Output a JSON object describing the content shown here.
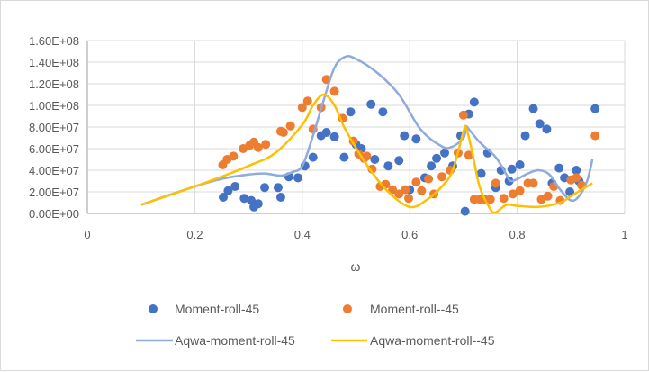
{
  "chart_data": {
    "type": "scatter",
    "title": "",
    "xlabel": "ω",
    "ylabel": "",
    "xlim": [
      0,
      1
    ],
    "ylim": [
      0,
      160000000
    ],
    "x_ticks": [
      "0",
      "0.2",
      "0.4",
      "0.6",
      "0.8",
      "1"
    ],
    "y_ticks": [
      "0.00E+00",
      "2.00E+07",
      "4.00E+07",
      "6.00E+07",
      "8.00E+07",
      "1.00E+08",
      "1.20E+08",
      "1.40E+08",
      "1.60E+08"
    ],
    "grid": {
      "horizontal": true,
      "vertical": true
    },
    "legend_position": "bottom",
    "series": [
      {
        "name": "Moment-roll-45",
        "kind": "markers",
        "color": "#4472C4",
        "points": [
          [
            0.253,
            15000000
          ],
          [
            0.262,
            21000000
          ],
          [
            0.275,
            25000000
          ],
          [
            0.292,
            14000000
          ],
          [
            0.305,
            12000000
          ],
          [
            0.31,
            6000000
          ],
          [
            0.318,
            9000000
          ],
          [
            0.33,
            24000000
          ],
          [
            0.355,
            24000000
          ],
          [
            0.36,
            15000000
          ],
          [
            0.375,
            34000000
          ],
          [
            0.392,
            33000000
          ],
          [
            0.405,
            44000000
          ],
          [
            0.42,
            52000000
          ],
          [
            0.435,
            72000000
          ],
          [
            0.445,
            75000000
          ],
          [
            0.46,
            71000000
          ],
          [
            0.478,
            52000000
          ],
          [
            0.49,
            94000000
          ],
          [
            0.5,
            64000000
          ],
          [
            0.51,
            60000000
          ],
          [
            0.528,
            101000000
          ],
          [
            0.535,
            50000000
          ],
          [
            0.55,
            94000000
          ],
          [
            0.56,
            44000000
          ],
          [
            0.58,
            49000000
          ],
          [
            0.59,
            72000000
          ],
          [
            0.6,
            22000000
          ],
          [
            0.612,
            69000000
          ],
          [
            0.628,
            33000000
          ],
          [
            0.64,
            44000000
          ],
          [
            0.65,
            51000000
          ],
          [
            0.665,
            56000000
          ],
          [
            0.68,
            44000000
          ],
          [
            0.695,
            72000000
          ],
          [
            0.703,
            2000000
          ],
          [
            0.71,
            92000000
          ],
          [
            0.72,
            103000000
          ],
          [
            0.733,
            37000000
          ],
          [
            0.745,
            56000000
          ],
          [
            0.76,
            24000000
          ],
          [
            0.77,
            40000000
          ],
          [
            0.785,
            30000000
          ],
          [
            0.79,
            41000000
          ],
          [
            0.805,
            45000000
          ],
          [
            0.815,
            72000000
          ],
          [
            0.83,
            97000000
          ],
          [
            0.842,
            83000000
          ],
          [
            0.855,
            78000000
          ],
          [
            0.865,
            28000000
          ],
          [
            0.878,
            42000000
          ],
          [
            0.888,
            33000000
          ],
          [
            0.898,
            20000000
          ],
          [
            0.91,
            40000000
          ],
          [
            0.915,
            30000000
          ],
          [
            0.945,
            97000000
          ]
        ]
      },
      {
        "name": "Moment-roll--45",
        "kind": "markers",
        "color": "#ED7D31",
        "points": [
          [
            0.252,
            45000000
          ],
          [
            0.26,
            50000000
          ],
          [
            0.272,
            53000000
          ],
          [
            0.29,
            60000000
          ],
          [
            0.302,
            63000000
          ],
          [
            0.31,
            66000000
          ],
          [
            0.318,
            61000000
          ],
          [
            0.332,
            64000000
          ],
          [
            0.36,
            76000000
          ],
          [
            0.365,
            75000000
          ],
          [
            0.378,
            81000000
          ],
          [
            0.4,
            98000000
          ],
          [
            0.41,
            104000000
          ],
          [
            0.42,
            78000000
          ],
          [
            0.435,
            98000000
          ],
          [
            0.445,
            124000000
          ],
          [
            0.46,
            113000000
          ],
          [
            0.475,
            88000000
          ],
          [
            0.495,
            67000000
          ],
          [
            0.505,
            55000000
          ],
          [
            0.515,
            51000000
          ],
          [
            0.52,
            53000000
          ],
          [
            0.53,
            41000000
          ],
          [
            0.545,
            25000000
          ],
          [
            0.555,
            27000000
          ],
          [
            0.568,
            22000000
          ],
          [
            0.58,
            18000000
          ],
          [
            0.592,
            22000000
          ],
          [
            0.598,
            14000000
          ],
          [
            0.612,
            29000000
          ],
          [
            0.622,
            21000000
          ],
          [
            0.635,
            32000000
          ],
          [
            0.645,
            18000000
          ],
          [
            0.66,
            34000000
          ],
          [
            0.675,
            40000000
          ],
          [
            0.69,
            56000000
          ],
          [
            0.7,
            91000000
          ],
          [
            0.71,
            54000000
          ],
          [
            0.72,
            13000000
          ],
          [
            0.73,
            13000000
          ],
          [
            0.74,
            13000000
          ],
          [
            0.75,
            13000000
          ],
          [
            0.76,
            28000000
          ],
          [
            0.775,
            14000000
          ],
          [
            0.792,
            18000000
          ],
          [
            0.805,
            21000000
          ],
          [
            0.82,
            28000000
          ],
          [
            0.83,
            28000000
          ],
          [
            0.845,
            13000000
          ],
          [
            0.857,
            16000000
          ],
          [
            0.868,
            25000000
          ],
          [
            0.88,
            12000000
          ],
          [
            0.9,
            31000000
          ],
          [
            0.91,
            33000000
          ],
          [
            0.92,
            26000000
          ],
          [
            0.945,
            72000000
          ]
        ]
      },
      {
        "name": "Aqwa-moment-roll-45",
        "kind": "line",
        "color": "#8FAADC",
        "points": [
          [
            0.1,
            8000000
          ],
          [
            0.2,
            25000000
          ],
          [
            0.25,
            32000000
          ],
          [
            0.3,
            36000000
          ],
          [
            0.33,
            37000000
          ],
          [
            0.36,
            35000000
          ],
          [
            0.38,
            38000000
          ],
          [
            0.4,
            44000000
          ],
          [
            0.42,
            72000000
          ],
          [
            0.44,
            105000000
          ],
          [
            0.46,
            135000000
          ],
          [
            0.48,
            145000000
          ],
          [
            0.5,
            143000000
          ],
          [
            0.54,
            130000000
          ],
          [
            0.58,
            110000000
          ],
          [
            0.62,
            78000000
          ],
          [
            0.66,
            62000000
          ],
          [
            0.68,
            62000000
          ],
          [
            0.7,
            70000000
          ],
          [
            0.705,
            80000000
          ],
          [
            0.71,
            78000000
          ],
          [
            0.73,
            66000000
          ],
          [
            0.76,
            52000000
          ],
          [
            0.78,
            36000000
          ],
          [
            0.79,
            30000000
          ],
          [
            0.82,
            37000000
          ],
          [
            0.84,
            40000000
          ],
          [
            0.86,
            36000000
          ],
          [
            0.88,
            22000000
          ],
          [
            0.9,
            12000000
          ],
          [
            0.915,
            16000000
          ],
          [
            0.93,
            30000000
          ],
          [
            0.94,
            50000000
          ]
        ]
      },
      {
        "name": "Aqwa-moment-roll--45",
        "kind": "line",
        "color": "#FFC000",
        "points": [
          [
            0.1,
            8000000
          ],
          [
            0.2,
            25000000
          ],
          [
            0.25,
            34000000
          ],
          [
            0.3,
            44000000
          ],
          [
            0.35,
            56000000
          ],
          [
            0.4,
            82000000
          ],
          [
            0.42,
            100000000
          ],
          [
            0.44,
            110000000
          ],
          [
            0.46,
            100000000
          ],
          [
            0.48,
            78000000
          ],
          [
            0.52,
            45000000
          ],
          [
            0.56,
            20000000
          ],
          [
            0.6,
            6000000
          ],
          [
            0.63,
            12000000
          ],
          [
            0.66,
            25000000
          ],
          [
            0.68,
            40000000
          ],
          [
            0.7,
            76000000
          ],
          [
            0.705,
            79000000
          ],
          [
            0.715,
            60000000
          ],
          [
            0.73,
            25000000
          ],
          [
            0.75,
            4000000
          ],
          [
            0.76,
            1000000
          ],
          [
            0.78,
            8000000
          ],
          [
            0.8,
            7000000
          ],
          [
            0.84,
            6000000
          ],
          [
            0.88,
            10000000
          ],
          [
            0.9,
            16000000
          ],
          [
            0.94,
            28000000
          ]
        ]
      }
    ]
  }
}
